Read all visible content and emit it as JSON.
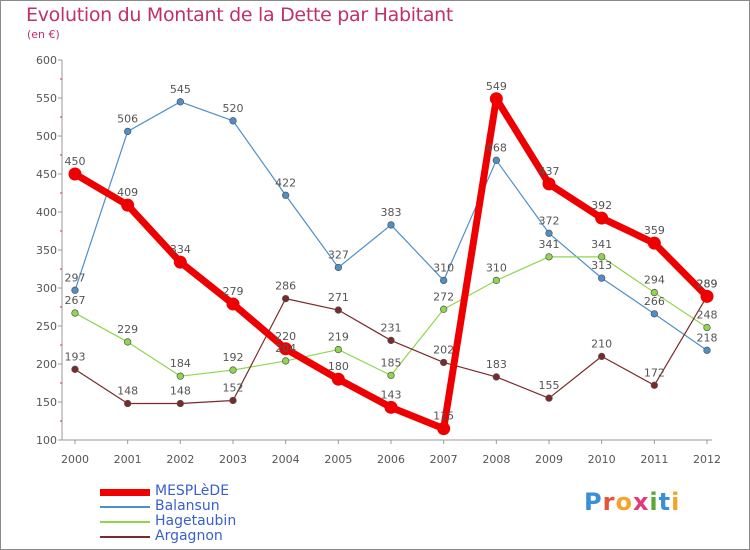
{
  "header": {
    "title": "Evolution du Montant de la Dette par Habitant",
    "subtitle": "(en €)"
  },
  "logo": {
    "text": "Proxiti",
    "letters": [
      {
        "ch": "P",
        "color": "#3a8fd9"
      },
      {
        "ch": "r",
        "color": "#e6533c"
      },
      {
        "ch": "o",
        "color": "#f3a52a"
      },
      {
        "ch": "x",
        "color": "#e33b7a"
      },
      {
        "ch": "i",
        "color": "#5aa937"
      },
      {
        "ch": "t",
        "color": "#3a8fd9"
      },
      {
        "ch": "i",
        "color": "#f3a52a"
      }
    ]
  },
  "chart_data": {
    "type": "line",
    "x": [
      "2000",
      "2001",
      "2002",
      "2003",
      "2004",
      "2005",
      "2006",
      "2007",
      "2008",
      "2009",
      "2010",
      "2011",
      "2012"
    ],
    "ylim": [
      100,
      600
    ],
    "yticks": [
      "100",
      "150",
      "200",
      "250",
      "300",
      "350",
      "400",
      "450",
      "500",
      "550",
      "600"
    ],
    "grid": false,
    "legend_position": "bottom-left",
    "series": [
      {
        "name": "MESPLèDE",
        "color": "#ee0000",
        "values": [
          450,
          409,
          334,
          279,
          220,
          180,
          143,
          115,
          549,
          437,
          392,
          359,
          289
        ]
      },
      {
        "name": "Balansun",
        "color": "#4f8fc8",
        "values": [
          297,
          506,
          545,
          520,
          422,
          327,
          383,
          310,
          468,
          372,
          313,
          266,
          218
        ]
      },
      {
        "name": "Hagetaubin",
        "color": "#8fd64f",
        "values": [
          267,
          229,
          184,
          192,
          204,
          219,
          185,
          272,
          310,
          341,
          341,
          294,
          248
        ]
      },
      {
        "name": "Argagnon",
        "color": "#7a2a2a",
        "values": [
          193,
          148,
          148,
          152,
          286,
          271,
          231,
          202,
          183,
          155,
          210,
          172,
          289
        ]
      }
    ]
  }
}
